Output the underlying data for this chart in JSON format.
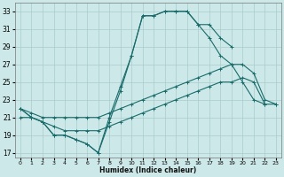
{
  "xlabel": "Humidex (Indice chaleur)",
  "xlim": [
    -0.5,
    23.5
  ],
  "ylim": [
    16.5,
    34
  ],
  "yticks": [
    17,
    19,
    21,
    23,
    25,
    27,
    29,
    31,
    33
  ],
  "xticks": [
    0,
    1,
    2,
    3,
    4,
    5,
    6,
    7,
    8,
    9,
    10,
    11,
    12,
    13,
    14,
    15,
    16,
    17,
    18,
    19,
    20,
    21,
    22,
    23
  ],
  "bg_color": "#cce8e8",
  "grid_color": "#aacccc",
  "line_color": "#1a6b6b",
  "curve1_x": [
    0,
    1,
    2,
    3,
    4,
    5,
    6,
    7,
    8,
    9,
    10,
    11,
    12,
    13,
    14,
    15,
    16,
    17,
    18,
    19
  ],
  "curve1_y": [
    22,
    21,
    20.5,
    19,
    19,
    18.5,
    18,
    17,
    20.5,
    24,
    28,
    32.5,
    32.5,
    33,
    33,
    33,
    31.5,
    31.5,
    30,
    29
  ],
  "curve2_x": [
    0,
    1,
    2,
    3,
    4,
    5,
    6,
    7,
    8,
    9,
    10,
    11,
    12,
    13,
    14,
    15,
    16,
    17,
    18,
    19,
    20,
    21,
    22
  ],
  "curve2_y": [
    22,
    21,
    20.5,
    19,
    19,
    18.5,
    18,
    17,
    21,
    24.5,
    28,
    32.5,
    32.5,
    33,
    33,
    33,
    31.5,
    30,
    28,
    27,
    25,
    23,
    22.5
  ],
  "curve3_x": [
    0,
    1,
    2,
    3,
    4,
    5,
    6,
    7,
    8,
    9,
    10,
    11,
    12,
    13,
    14,
    15,
    16,
    17,
    18,
    19,
    20,
    21,
    22,
    23
  ],
  "curve3_y": [
    22,
    21.5,
    21,
    21,
    21,
    21,
    21,
    21,
    21.5,
    22,
    22.5,
    23,
    23.5,
    24,
    24.5,
    25,
    25.5,
    26,
    26.5,
    27,
    27,
    26,
    23,
    22.5
  ],
  "curve4_x": [
    0,
    1,
    2,
    3,
    4,
    5,
    6,
    7,
    8,
    9,
    10,
    11,
    12,
    13,
    14,
    15,
    16,
    17,
    18,
    19,
    20,
    21,
    22,
    23
  ],
  "curve4_y": [
    21,
    21,
    20.5,
    20,
    19.5,
    19.5,
    19.5,
    19.5,
    20,
    20.5,
    21,
    21.5,
    22,
    22.5,
    23,
    23.5,
    24,
    24.5,
    25,
    25,
    25.5,
    25,
    22.5,
    22.5
  ]
}
